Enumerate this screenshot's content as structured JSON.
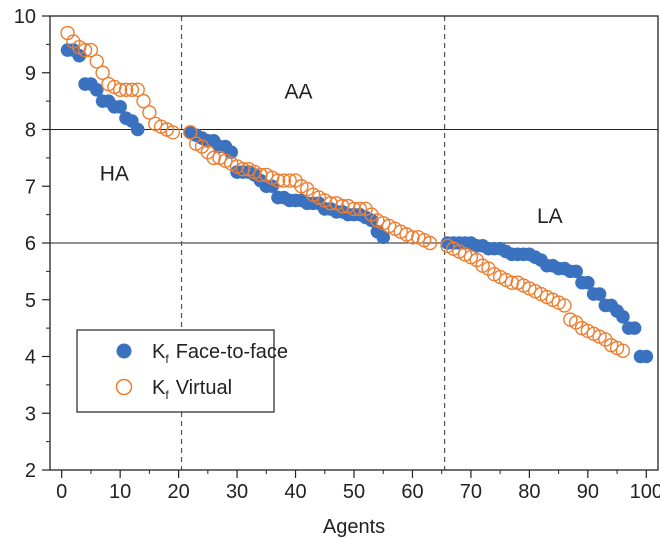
{
  "chart_data": {
    "type": "scatter",
    "xlabel": "Agents",
    "ylabel": "",
    "xlim": [
      -2,
      102
    ],
    "ylim": [
      2,
      10
    ],
    "xticks": [
      0,
      10,
      20,
      30,
      40,
      50,
      60,
      70,
      80,
      90,
      100
    ],
    "yticks": [
      2,
      3,
      4,
      5,
      6,
      7,
      8,
      9,
      10
    ],
    "hlines": [
      8,
      6
    ],
    "vlines": [
      20.5,
      65.5
    ],
    "regions": [
      {
        "label": "HA",
        "x": 9,
        "y": 7.1
      },
      {
        "label": "AA",
        "x": 40.5,
        "y": 8.55
      },
      {
        "label": "LA",
        "x": 83.5,
        "y": 6.35
      }
    ],
    "legend": {
      "position": "bottom-left",
      "entries": [
        {
          "main": "K",
          "sub": "f",
          "rest": "Face-to-face",
          "marker": "filled",
          "color": "#3b72c0"
        },
        {
          "main": "K",
          "sub": "f",
          "rest": "Virtual",
          "marker": "open",
          "color": "#ed7d31"
        }
      ]
    },
    "series": [
      {
        "name": "Face-to-face",
        "marker": "filled",
        "color": "#3b72c0",
        "x": [
          1,
          2,
          3,
          4,
          5,
          6,
          7,
          8,
          9,
          10,
          11,
          12,
          13,
          22,
          23,
          24,
          25,
          26,
          27,
          28,
          29,
          30,
          31,
          32,
          33,
          34,
          35,
          36,
          37,
          38,
          39,
          40,
          41,
          42,
          43,
          44,
          45,
          46,
          47,
          48,
          49,
          50,
          51,
          52,
          53,
          54,
          55,
          66,
          67,
          68,
          69,
          70,
          71,
          72,
          73,
          74,
          75,
          76,
          77,
          78,
          79,
          80,
          81,
          82,
          83,
          84,
          85,
          86,
          87,
          88,
          89,
          90,
          91,
          92,
          93,
          94,
          95,
          96,
          97,
          98,
          99,
          100
        ],
        "y": [
          9.4,
          9.4,
          9.3,
          8.8,
          8.8,
          8.7,
          8.5,
          8.5,
          8.4,
          8.4,
          8.2,
          8.15,
          8.0,
          7.95,
          7.9,
          7.85,
          7.8,
          7.8,
          7.7,
          7.7,
          7.6,
          7.25,
          7.25,
          7.25,
          7.2,
          7.1,
          7.0,
          7.0,
          6.8,
          6.8,
          6.75,
          6.75,
          6.75,
          6.7,
          6.7,
          6.7,
          6.6,
          6.6,
          6.55,
          6.55,
          6.5,
          6.5,
          6.5,
          6.45,
          6.4,
          6.2,
          6.1,
          6.0,
          6.0,
          6.0,
          6.0,
          6.0,
          5.95,
          5.95,
          5.9,
          5.9,
          5.9,
          5.85,
          5.8,
          5.8,
          5.8,
          5.8,
          5.75,
          5.7,
          5.6,
          5.6,
          5.55,
          5.55,
          5.5,
          5.5,
          5.3,
          5.3,
          5.1,
          5.1,
          4.9,
          4.9,
          4.8,
          4.7,
          4.5,
          4.5,
          4.0,
          4.0
        ]
      },
      {
        "name": "Virtual",
        "marker": "open",
        "color": "#ed7d31",
        "x": [
          1,
          2,
          3,
          4,
          5,
          6,
          7,
          8,
          9,
          10,
          11,
          12,
          13,
          14,
          15,
          16,
          17,
          18,
          19,
          22,
          23,
          24,
          25,
          26,
          27,
          28,
          29,
          30,
          31,
          32,
          33,
          34,
          35,
          36,
          37,
          38,
          39,
          40,
          41,
          42,
          43,
          44,
          45,
          46,
          47,
          48,
          49,
          50,
          51,
          52,
          53,
          54,
          55,
          56,
          57,
          58,
          59,
          60,
          61,
          62,
          63,
          66,
          67,
          68,
          69,
          70,
          71,
          72,
          73,
          74,
          75,
          76,
          77,
          78,
          79,
          80,
          81,
          82,
          83,
          84,
          85,
          86,
          87,
          88,
          89,
          90,
          91,
          92,
          93,
          94,
          95,
          96
        ],
        "y": [
          9.7,
          9.55,
          9.45,
          9.4,
          9.4,
          9.2,
          9.0,
          8.8,
          8.75,
          8.7,
          8.7,
          8.7,
          8.7,
          8.5,
          8.3,
          8.1,
          8.05,
          8.0,
          7.95,
          7.95,
          7.75,
          7.7,
          7.6,
          7.5,
          7.5,
          7.45,
          7.4,
          7.35,
          7.3,
          7.3,
          7.25,
          7.2,
          7.2,
          7.15,
          7.1,
          7.1,
          7.1,
          7.1,
          7.0,
          6.95,
          6.85,
          6.8,
          6.75,
          6.7,
          6.7,
          6.65,
          6.65,
          6.6,
          6.6,
          6.6,
          6.5,
          6.4,
          6.35,
          6.3,
          6.25,
          6.2,
          6.15,
          6.1,
          6.1,
          6.05,
          6.0,
          5.95,
          5.9,
          5.85,
          5.8,
          5.75,
          5.7,
          5.6,
          5.55,
          5.45,
          5.4,
          5.35,
          5.3,
          5.3,
          5.25,
          5.2,
          5.15,
          5.1,
          5.05,
          5.0,
          4.95,
          4.9,
          4.65,
          4.6,
          4.5,
          4.45,
          4.4,
          4.35,
          4.3,
          4.2,
          4.15,
          4.1
        ]
      }
    ]
  }
}
